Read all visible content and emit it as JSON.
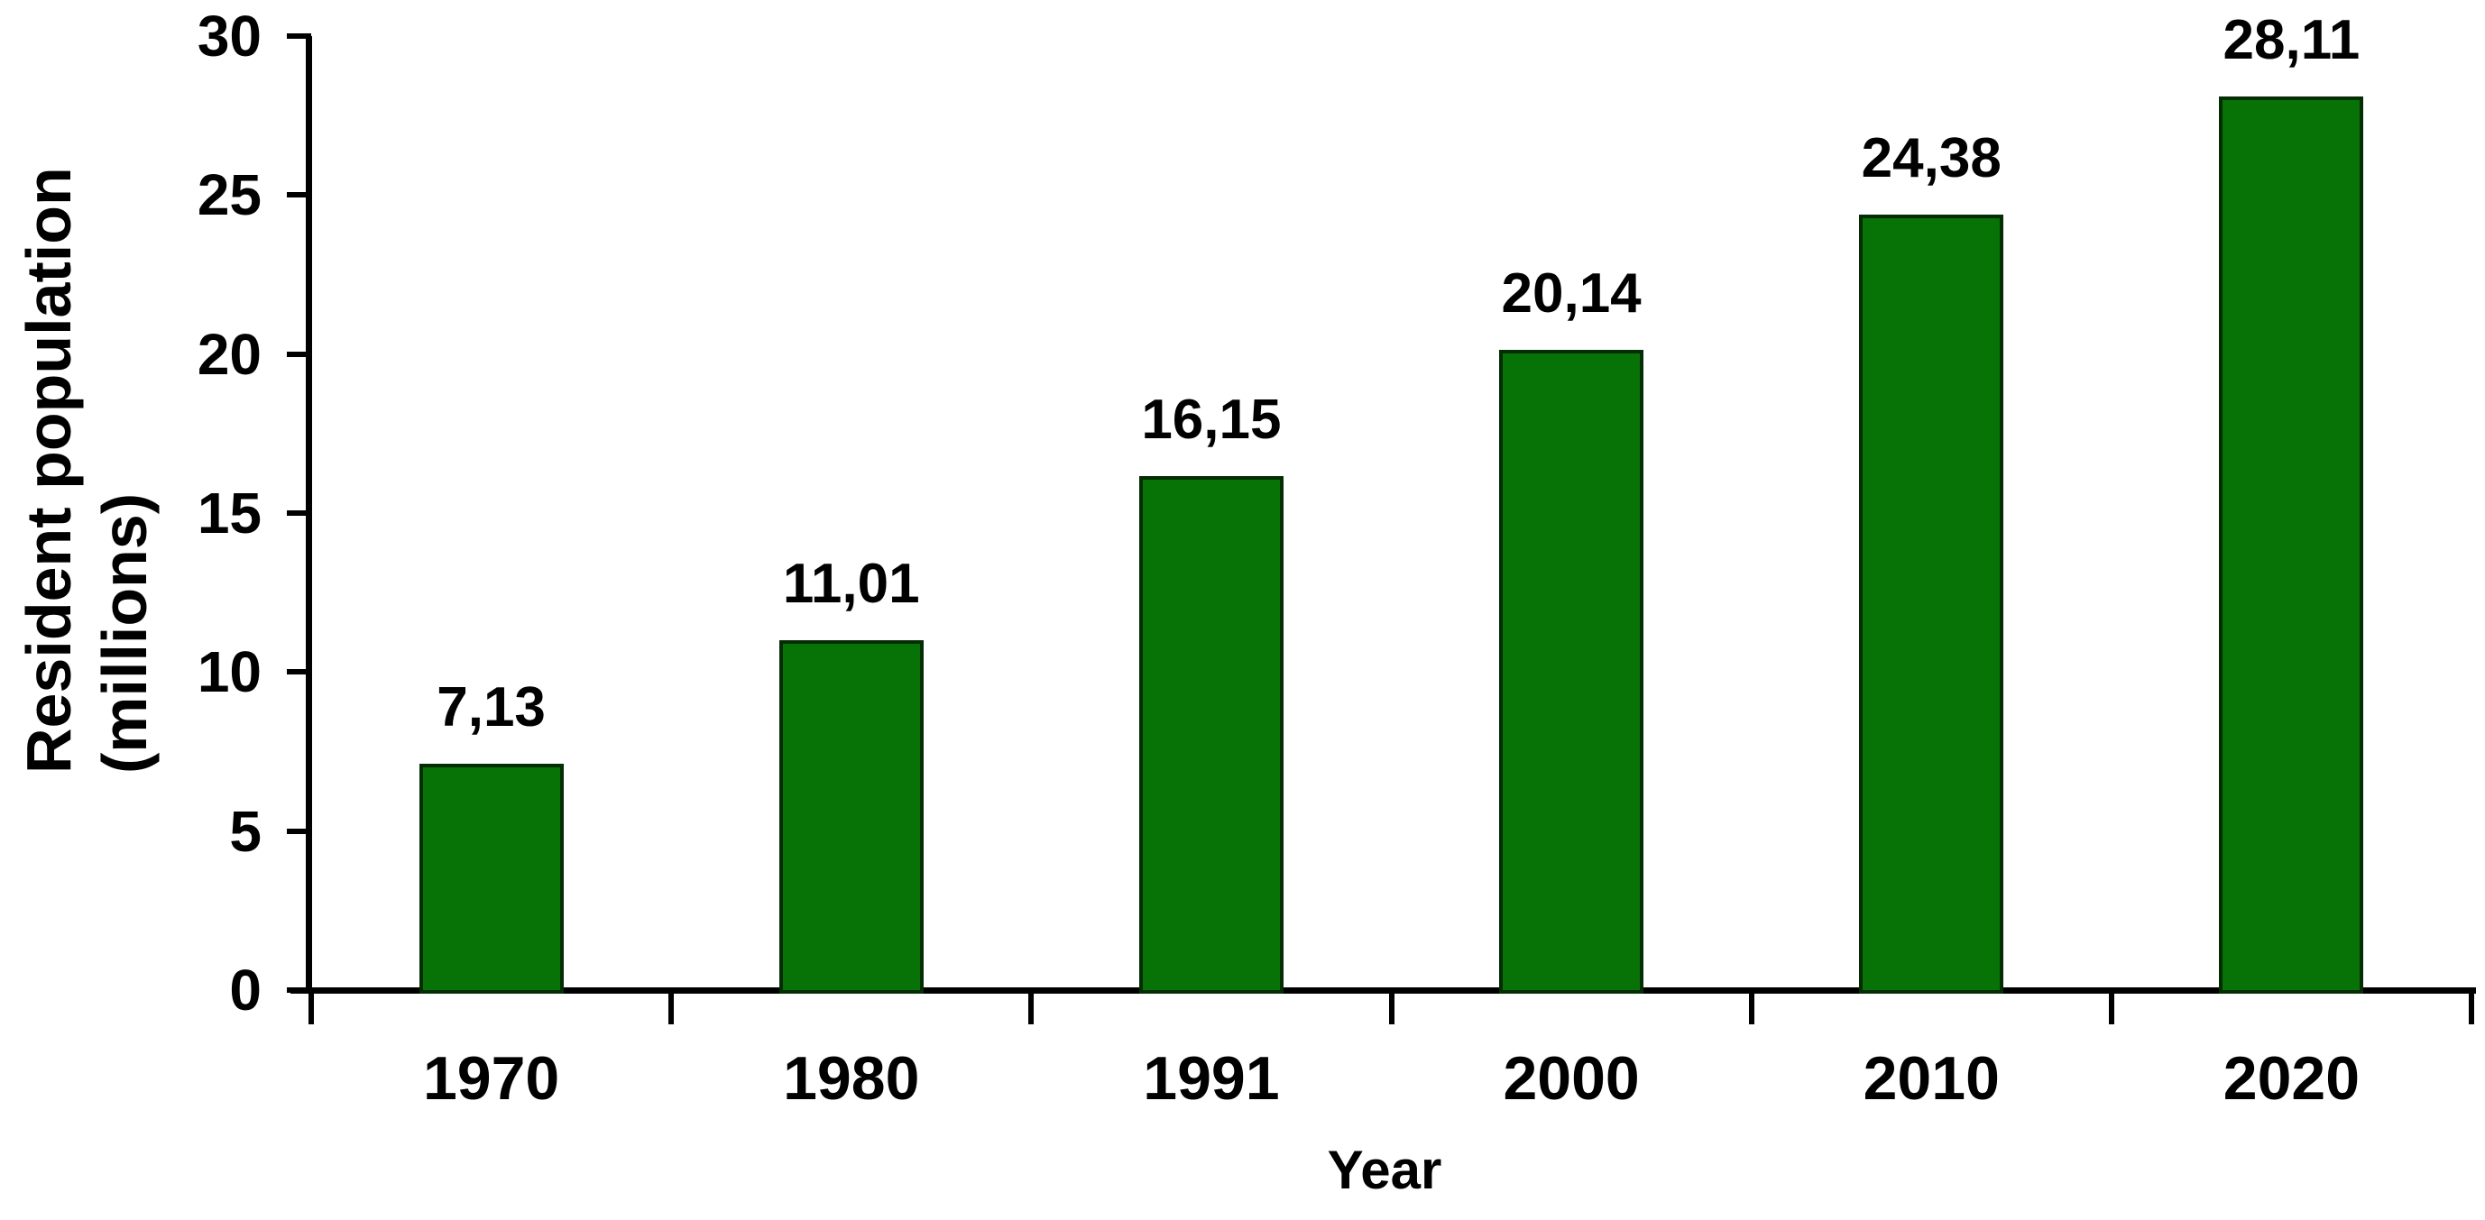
{
  "chart_data": {
    "type": "bar",
    "title": "",
    "categories": [
      "1970",
      "1980",
      "1991",
      "2000",
      "2010",
      "2020"
    ],
    "values": [
      7.13,
      11.01,
      16.15,
      20.14,
      24.38,
      28.11
    ],
    "bar_labels": [
      "7,13",
      "11,01",
      "16,15",
      "20,14",
      "24,38",
      "28,11"
    ],
    "xlabel": "Year",
    "ylabel": "Resident population (millions)",
    "ylabel_line1": "Resident population",
    "ylabel_line2": "(millions)",
    "ylim": [
      0,
      30
    ],
    "y_ticks": [
      0,
      5,
      10,
      15,
      20,
      25,
      30
    ],
    "grid": false,
    "legend": "none",
    "colors": {
      "bar_fill": "#077307",
      "bar_border": "#042d04",
      "axis": "#000000",
      "text": "#000000"
    }
  }
}
